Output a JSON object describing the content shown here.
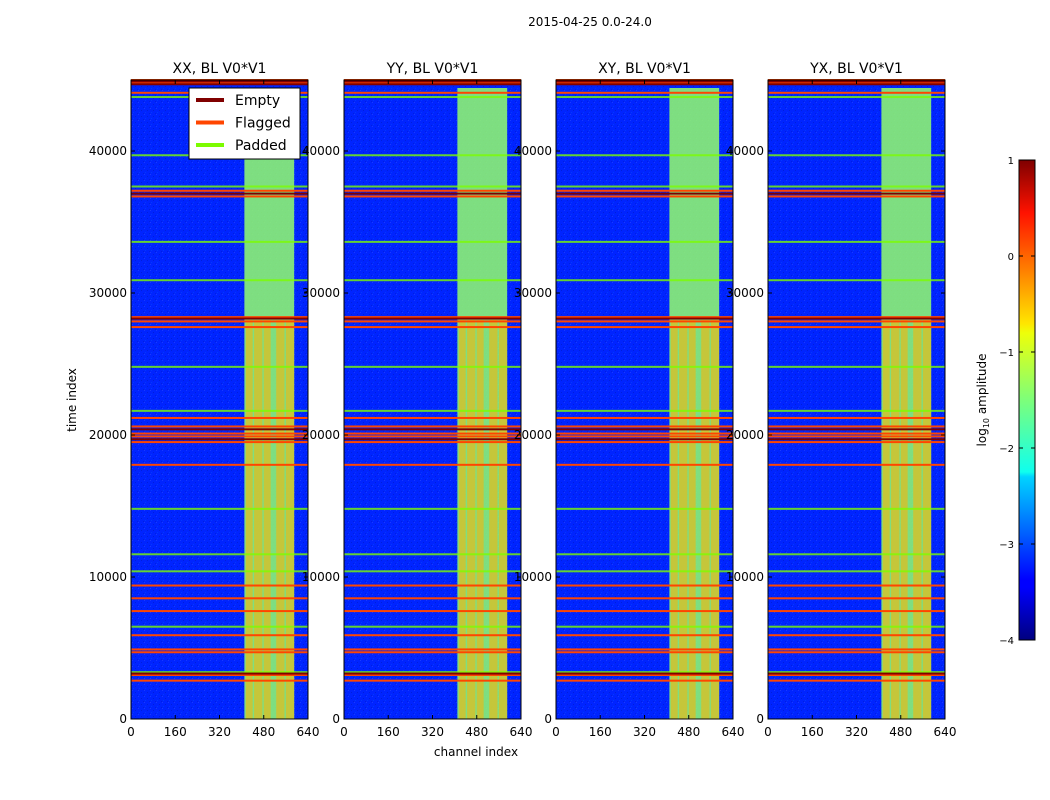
{
  "chart_data": {
    "type": "heatmap",
    "suptitle": "2015-04-25 0.0-24.0",
    "xlabel": "channel index",
    "ylabel": "time index",
    "xlim": [
      0,
      640
    ],
    "ylim": [
      0,
      45000
    ],
    "xticks": [
      "0",
      "160",
      "320",
      "480",
      "640"
    ],
    "xtick_values": [
      0,
      160,
      320,
      480,
      640
    ],
    "yticks": [
      "0",
      "10000",
      "20000",
      "30000",
      "40000"
    ],
    "ytick_values": [
      0,
      10000,
      20000,
      30000,
      40000
    ],
    "panels": [
      {
        "title": "XX, BL V0*V1"
      },
      {
        "title": "YY, BL V0*V1"
      },
      {
        "title": "XY, BL V0*V1"
      },
      {
        "title": "YX, BL V0*V1"
      }
    ],
    "legend": {
      "position": "top-right of first panel",
      "entries": [
        {
          "label": "Empty",
          "color": "#800000"
        },
        {
          "label": "Flagged",
          "color": "#ff4500"
        },
        {
          "label": "Padded",
          "color": "#7cfc00"
        }
      ]
    },
    "colorbar": {
      "label": "log10 amplitude",
      "label_prefix": "log",
      "label_sub": "10",
      "label_suffix": " amplitude",
      "range": [
        -4,
        1
      ],
      "ticks": [
        "1",
        "0",
        "−1",
        "−2",
        "−3",
        "−4"
      ],
      "tick_values": [
        1,
        0,
        -1,
        -2,
        -3,
        -4
      ]
    },
    "background_level": -3.2,
    "bright_channel_range": [
      410,
      590
    ],
    "bright_level": -1.4,
    "band_channel_ranges": [
      [
        415,
        440
      ],
      [
        445,
        475
      ],
      [
        480,
        505
      ],
      [
        525,
        555
      ],
      [
        560,
        590
      ]
    ],
    "flag_rows": [
      45000,
      44800,
      44100,
      37200,
      36800,
      28300,
      28000,
      27600,
      21200,
      20600,
      20100,
      19900,
      19500,
      17900,
      9400,
      8500,
      7600,
      5900,
      4900,
      4700,
      3100,
      2700
    ],
    "padded_rows": [
      43800,
      39700,
      37500,
      33600,
      30900,
      24800,
      21700,
      14800,
      11600,
      10400,
      6500,
      3300
    ],
    "empty_rows": [
      44900,
      44700,
      37000,
      28200,
      20400,
      19700,
      3200
    ]
  }
}
